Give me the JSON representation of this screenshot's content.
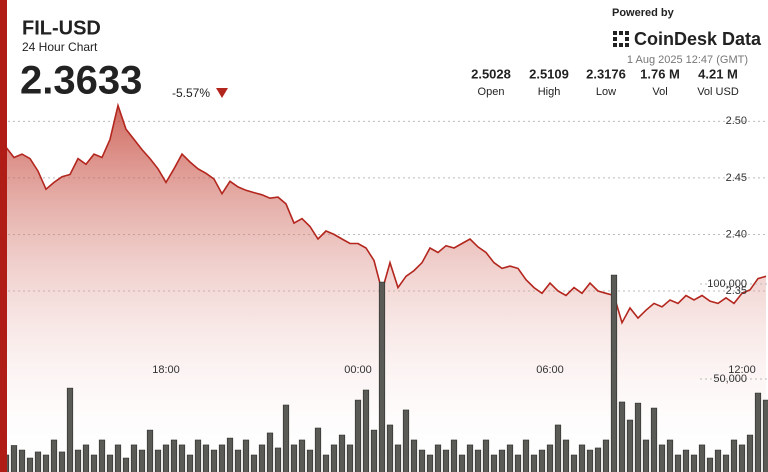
{
  "header": {
    "symbol": "FIL-USD",
    "subtitle": "24 Hour Chart",
    "price": "2.3633",
    "change": "-5.57%"
  },
  "branding": {
    "powered": "Powered by",
    "brand": "CoinDesk Data",
    "timestamp": "1 Aug 2025 12:47 (GMT)"
  },
  "stats": [
    {
      "value": "2.5028",
      "label": "Open"
    },
    {
      "value": "2.5109",
      "label": "High"
    },
    {
      "value": "2.3176",
      "label": "Low"
    },
    {
      "value": "1.76 M",
      "label": "Vol"
    },
    {
      "value": "4.21 M",
      "label": "Vol USD"
    }
  ],
  "chart_data": {
    "type": "area",
    "categories": [
      null,
      null,
      null,
      null,
      null,
      null,
      null,
      null,
      null,
      null,
      null,
      null,
      null,
      null,
      null,
      null,
      null,
      null,
      null,
      null,
      "18:00",
      null,
      null,
      null,
      null,
      null,
      null,
      null,
      null,
      null,
      null,
      null,
      null,
      null,
      null,
      null,
      null,
      null,
      null,
      null,
      null,
      null,
      null,
      null,
      "00:00",
      null,
      null,
      null,
      null,
      null,
      null,
      null,
      null,
      null,
      null,
      null,
      null,
      null,
      null,
      null,
      null,
      null,
      null,
      null,
      null,
      null,
      null,
      null,
      "06:00",
      null,
      null,
      null,
      null,
      null,
      null,
      null,
      null,
      null,
      null,
      null,
      null,
      null,
      null,
      null,
      null,
      null,
      null,
      null,
      null,
      null,
      null,
      null,
      "12:00",
      null,
      null,
      null
    ],
    "series": [
      {
        "color": "#b3261e",
        "values": [
          2.477,
          2.468,
          2.471,
          2.467,
          2.456,
          2.44,
          2.446,
          2.451,
          2.453,
          2.467,
          2.462,
          2.471,
          2.468,
          2.484,
          2.514,
          2.493,
          2.484,
          2.475,
          2.467,
          2.458,
          2.446,
          2.458,
          2.471,
          2.464,
          2.458,
          2.454,
          2.449,
          2.436,
          2.447,
          2.442,
          2.439,
          2.437,
          2.435,
          2.432,
          2.433,
          2.427,
          2.41,
          2.414,
          2.407,
          2.396,
          2.403,
          2.4,
          2.396,
          2.392,
          2.392,
          2.388,
          2.377,
          2.35,
          2.375,
          2.353,
          2.363,
          2.368,
          2.375,
          2.388,
          2.384,
          2.39,
          2.388,
          2.392,
          2.396,
          2.389,
          2.384,
          2.375,
          2.37,
          2.372,
          2.37,
          2.36,
          2.353,
          2.348,
          2.357,
          2.35,
          2.346,
          2.353,
          2.348,
          2.357,
          2.35,
          2.348,
          2.346,
          2.322,
          2.335,
          2.326,
          2.333,
          2.339,
          2.336,
          2.342,
          2.339,
          2.346,
          2.342,
          2.346,
          2.341,
          2.339,
          2.344,
          2.339,
          2.348,
          2.351,
          2.361,
          2.363
        ]
      },
      {
        "type": "bar",
        "axis": "y2",
        "color": "#5a5a56",
        "values": [
          10000,
          15000,
          12600,
          8400,
          11600,
          10000,
          17900,
          11600,
          45200,
          12600,
          15300,
          10000,
          17900,
          10000,
          15300,
          8400,
          15300,
          12600,
          23100,
          12600,
          15300,
          17900,
          15300,
          10000,
          17900,
          15300,
          12600,
          15300,
          18900,
          12600,
          17900,
          10000,
          15300,
          21600,
          13700,
          36300,
          15300,
          17900,
          12600,
          24200,
          10000,
          15300,
          20500,
          15300,
          38900,
          44200,
          23100,
          101000,
          25800,
          15300,
          33700,
          17900,
          12600,
          10000,
          15300,
          12600,
          17900,
          10000,
          15300,
          12600,
          17900,
          10000,
          12600,
          15300,
          10000,
          17900,
          10000,
          12600,
          15300,
          25800,
          17900,
          10000,
          15300,
          12600,
          13700,
          17900,
          104700,
          37900,
          28400,
          37300,
          17900,
          34700,
          15300,
          17900,
          10000,
          12600,
          10000,
          15300,
          8400,
          12600,
          10000,
          17900,
          15300,
          20500,
          42600,
          38900
        ]
      }
    ],
    "ylim": [
      2.19,
      2.51
    ],
    "yticks": [
      {
        "value": 2.5,
        "label": "2.50"
      },
      2.45,
      {
        "value": 2.4,
        "label": "2.40"
      },
      2.35
    ],
    "y2lim": [
      0,
      110000
    ],
    "y2ticks": [
      {
        "value": 100000,
        "label": "100,000"
      },
      {
        "value": 50000,
        "label": "50,000"
      }
    ],
    "grid": true
  }
}
